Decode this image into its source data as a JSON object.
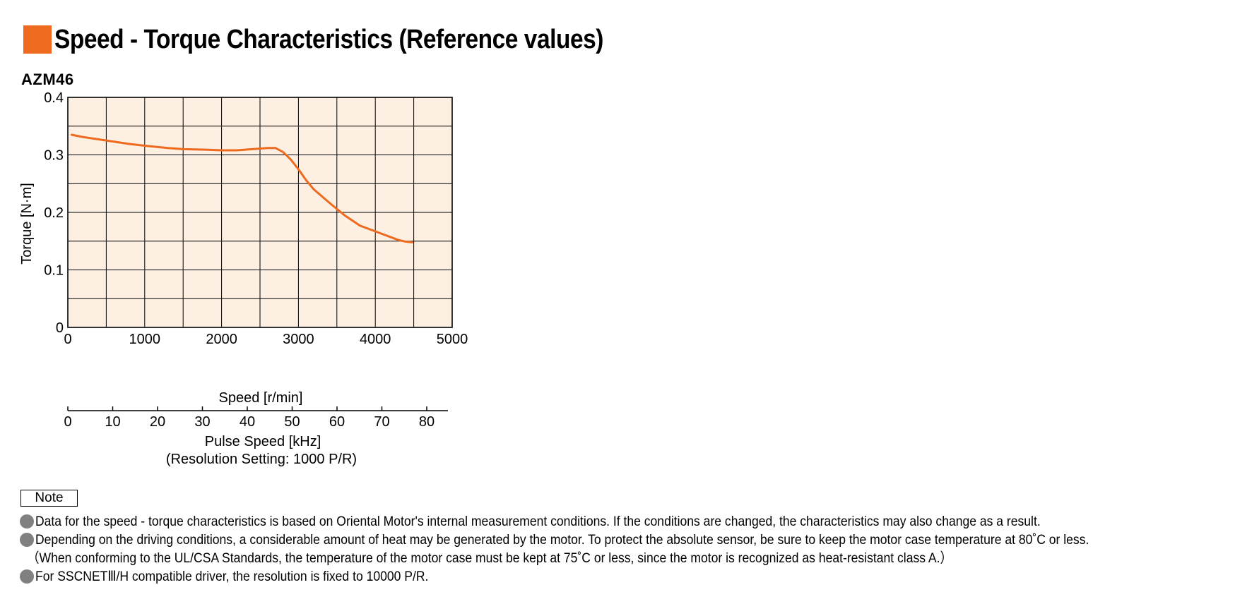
{
  "page": {
    "title": "Speed - Torque Characteristics (Reference values)",
    "title_color": "#EE6A1E",
    "model": "AZM46"
  },
  "chart_data": {
    "type": "line",
    "title": "",
    "xlabel": "Speed [r/min]",
    "ylabel": "Torque [N·m]",
    "xlim": [
      0,
      5000
    ],
    "ylim": [
      0,
      0.4
    ],
    "x_ticks": [
      "0",
      "1000",
      "2000",
      "3000",
      "4000",
      "5000"
    ],
    "y_ticks": [
      "0",
      "0.1",
      "0.2",
      "0.3",
      "0.4"
    ],
    "grid": true,
    "plot_background": "#FDF0E3",
    "line_color": "#EE6A1E",
    "series": [
      {
        "x": [
          50,
          200,
          500,
          800,
          1000,
          1300,
          1500,
          1800,
          2000,
          2200,
          2400,
          2600,
          2700,
          2800,
          2900,
          3000,
          3100,
          3200,
          3400,
          3600,
          3800,
          4000,
          4200,
          4300,
          4400,
          4480
        ],
        "y": [
          0.335,
          0.331,
          0.325,
          0.319,
          0.316,
          0.312,
          0.31,
          0.309,
          0.308,
          0.308,
          0.31,
          0.312,
          0.312,
          0.305,
          0.292,
          0.275,
          0.256,
          0.24,
          0.217,
          0.195,
          0.177,
          0.167,
          0.157,
          0.152,
          0.149,
          0.148
        ]
      }
    ],
    "secondary_axis": {
      "label": "Pulse Speed [kHz]",
      "sublabel": "(Resolution Setting: 1000 P/R)",
      "ticks": [
        "0",
        "10",
        "20",
        "30",
        "40",
        "50",
        "60",
        "70",
        "80"
      ]
    }
  },
  "notes": {
    "label": "Note",
    "items": [
      "Data for the speed - torque characteristics is based on Oriental Motor's internal measurement conditions. If the conditions are changed, the characteristics may also change as a result.",
      "Depending on the driving conditions, a considerable amount of heat may be generated by the motor.  To protect the absolute sensor, be sure to keep the motor case temperature at 80˚C or less.",
      "（When conforming to the UL/CSA Standards, the temperature of the motor case must be kept at 75˚C or less, since the motor is recognized as heat-resistant class A.）",
      "For SSCNETⅢ/H compatible driver, the resolution is fixed to 10000 P/R."
    ]
  }
}
